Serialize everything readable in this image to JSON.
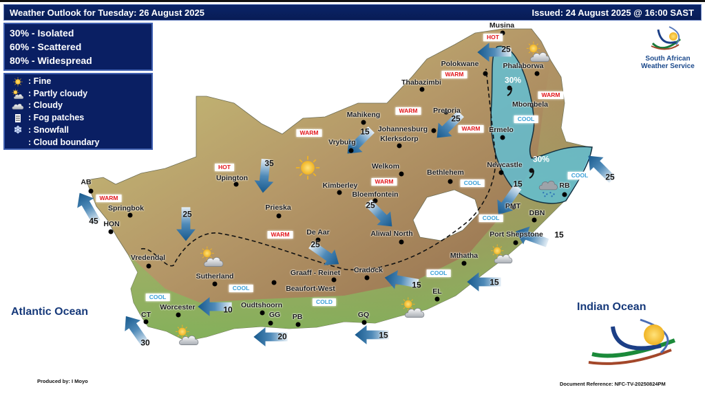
{
  "header": {
    "title": "Weather Outlook for Tuesday: 26 August 2025",
    "issued": "Issued: 24 August 2025 @ 16:00 SAST"
  },
  "probability_legend": [
    "30% - Isolated",
    "60% - Scattered",
    "80% - Widespread"
  ],
  "symbol_legend": [
    {
      "icon": "sun-icon",
      "label": ": Fine"
    },
    {
      "icon": "partly-cloudy-icon",
      "label": ": Partly cloudy"
    },
    {
      "icon": "cloudy-icon",
      "label": ": Cloudy"
    },
    {
      "icon": "fog-icon",
      "label": ": Fog patches"
    },
    {
      "icon": "snowflake-icon",
      "label": ": Snowfall"
    },
    {
      "icon": "none",
      "label": ": Cloud boundary"
    }
  ],
  "cities": [
    "Musina",
    "Polokwane",
    "Phalaborwa",
    "Thabazimbi",
    "Mahikeng",
    "Pretoria",
    "Johannesburg",
    "Klerksdorp",
    "Vryburg",
    "Mbombela",
    "Ermelo",
    "Newcastle",
    "Bethlehem",
    "Welkom",
    "Kimberley",
    "Bloemfontein",
    "Upington",
    "AB",
    "Springbok",
    "HON",
    "Prieska",
    "De Aar",
    "Aliwal North",
    "PMT",
    "DBN",
    "Port Shepstone",
    "RB",
    "Mthatha",
    "Vredendal",
    "Sutherland",
    "Graaff - Reinet",
    "Cradock",
    "Beaufort-West",
    "Worcester",
    "Oudtshoorn",
    "GG",
    "PB",
    "GQ",
    "EL",
    "CT"
  ],
  "temperature_labels": [
    "HOT",
    "HOT",
    "WARM",
    "WARM",
    "WARM",
    "WARM",
    "WARM",
    "WARM",
    "WARM",
    "WARM",
    "COOL",
    "COOL",
    "COOL",
    "COOL",
    "COOL",
    "COOL",
    "COOL",
    "COLD"
  ],
  "temperature_colors": {
    "HOT": "#e3161b",
    "WARM": "#e3161b",
    "COOL": "#3aa0d8",
    "COLD": "#3aa0d8"
  },
  "wind_speeds": [
    "25",
    "25",
    "15",
    "35",
    "25",
    "25",
    "25",
    "45",
    "30",
    "10",
    "20",
    "15",
    "15",
    "15",
    "15",
    "25",
    "15"
  ],
  "rain_probabilities": [
    "30%",
    "30%"
  ],
  "weather_icons": [
    "sun-icon",
    "partly-cloudy-icon",
    "partly-cloudy-icon",
    "partly-cloudy-icon",
    "partly-cloudy-icon",
    "partly-cloudy-icon",
    "cloud-rain-icon"
  ],
  "oceans": {
    "atlantic": "Atlantic Ocean",
    "indian": "Indian Ocean"
  },
  "logo_text": "South African Weather Service",
  "footer": {
    "produced_by": "Produced by: I Moyo",
    "doc_ref": "Document Reference: NFC-TV-20250824PM"
  },
  "colors": {
    "header_bg": "#0a2468",
    "cloud_region": "#5cc3dd",
    "arrow": "#1e5f92",
    "ocean_text": "#16397a"
  }
}
